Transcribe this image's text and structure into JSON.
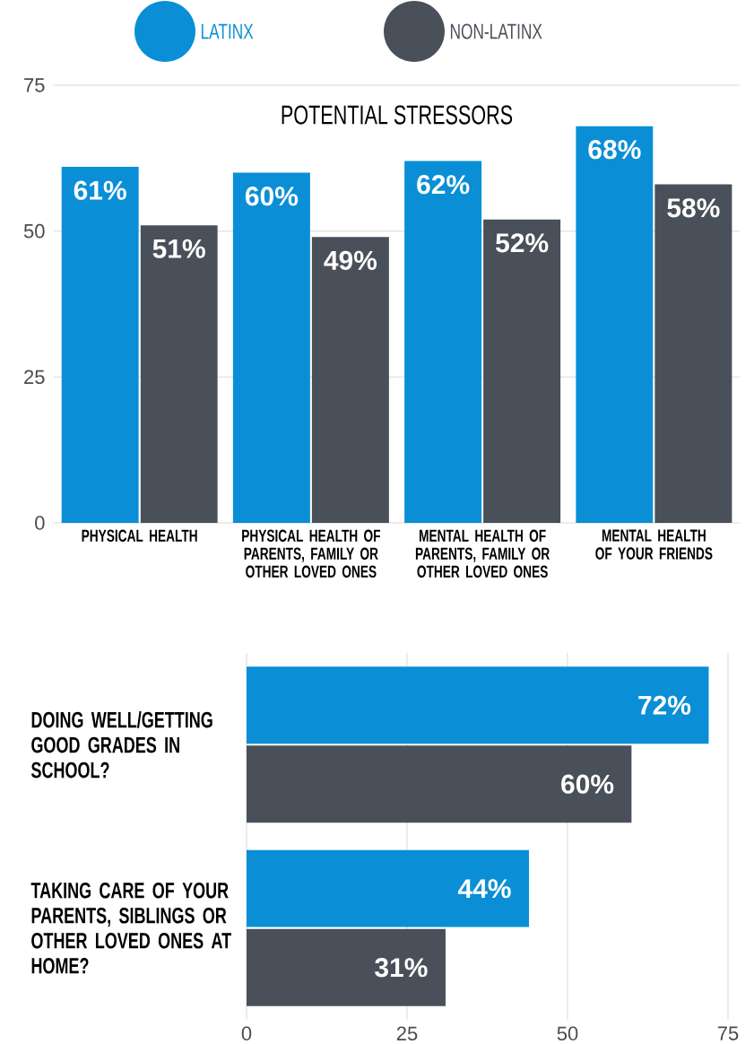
{
  "chart_data": [
    {
      "type": "bar",
      "title": "POTENTIAL STRESSORS",
      "categories": [
        "PHYSICAL HEALTH",
        "PHYSICAL HEALTH OF PARENTS, FAMILY OR OTHER LOVED ONES",
        "MENTAL HEALTH OF PARENTS, FAMILY OR OTHER LOVED ONES",
        "MENTAL HEALTH OF YOUR FRIENDS"
      ],
      "series": [
        {
          "name": "LATINX",
          "color": "#0a8fd6",
          "values": [
            61,
            60,
            62,
            68
          ],
          "value_labels": [
            "61%",
            "60%",
            "62%",
            "68%"
          ]
        },
        {
          "name": "NON-LATINX",
          "color": "#4a5059",
          "values": [
            51,
            49,
            52,
            58
          ],
          "value_labels": [
            "51%",
            "49%",
            "52%",
            "58%"
          ]
        }
      ],
      "ylim": [
        0,
        75
      ],
      "yticks": [
        0,
        25,
        50,
        75
      ],
      "grid": "y",
      "legend": "top"
    },
    {
      "type": "bar",
      "orientation": "horizontal",
      "categories": [
        "DOING WELL/GETTING GOOD GRADES IN SCHOOL?",
        "TAKING CARE OF YOUR PARENTS, SIBLINGS OR OTHER LOVED ONES AT HOME?"
      ],
      "series": [
        {
          "color": "#0a8fd6",
          "values": [
            72,
            44
          ],
          "value_labels": [
            "72%",
            "44%"
          ]
        },
        {
          "color": "#4a5059",
          "values": [
            60,
            31
          ],
          "value_labels": [
            "60%",
            "31%"
          ]
        }
      ],
      "xlim": [
        0,
        75
      ],
      "xticks": [
        0,
        25,
        50,
        75
      ],
      "grid": "x"
    }
  ]
}
